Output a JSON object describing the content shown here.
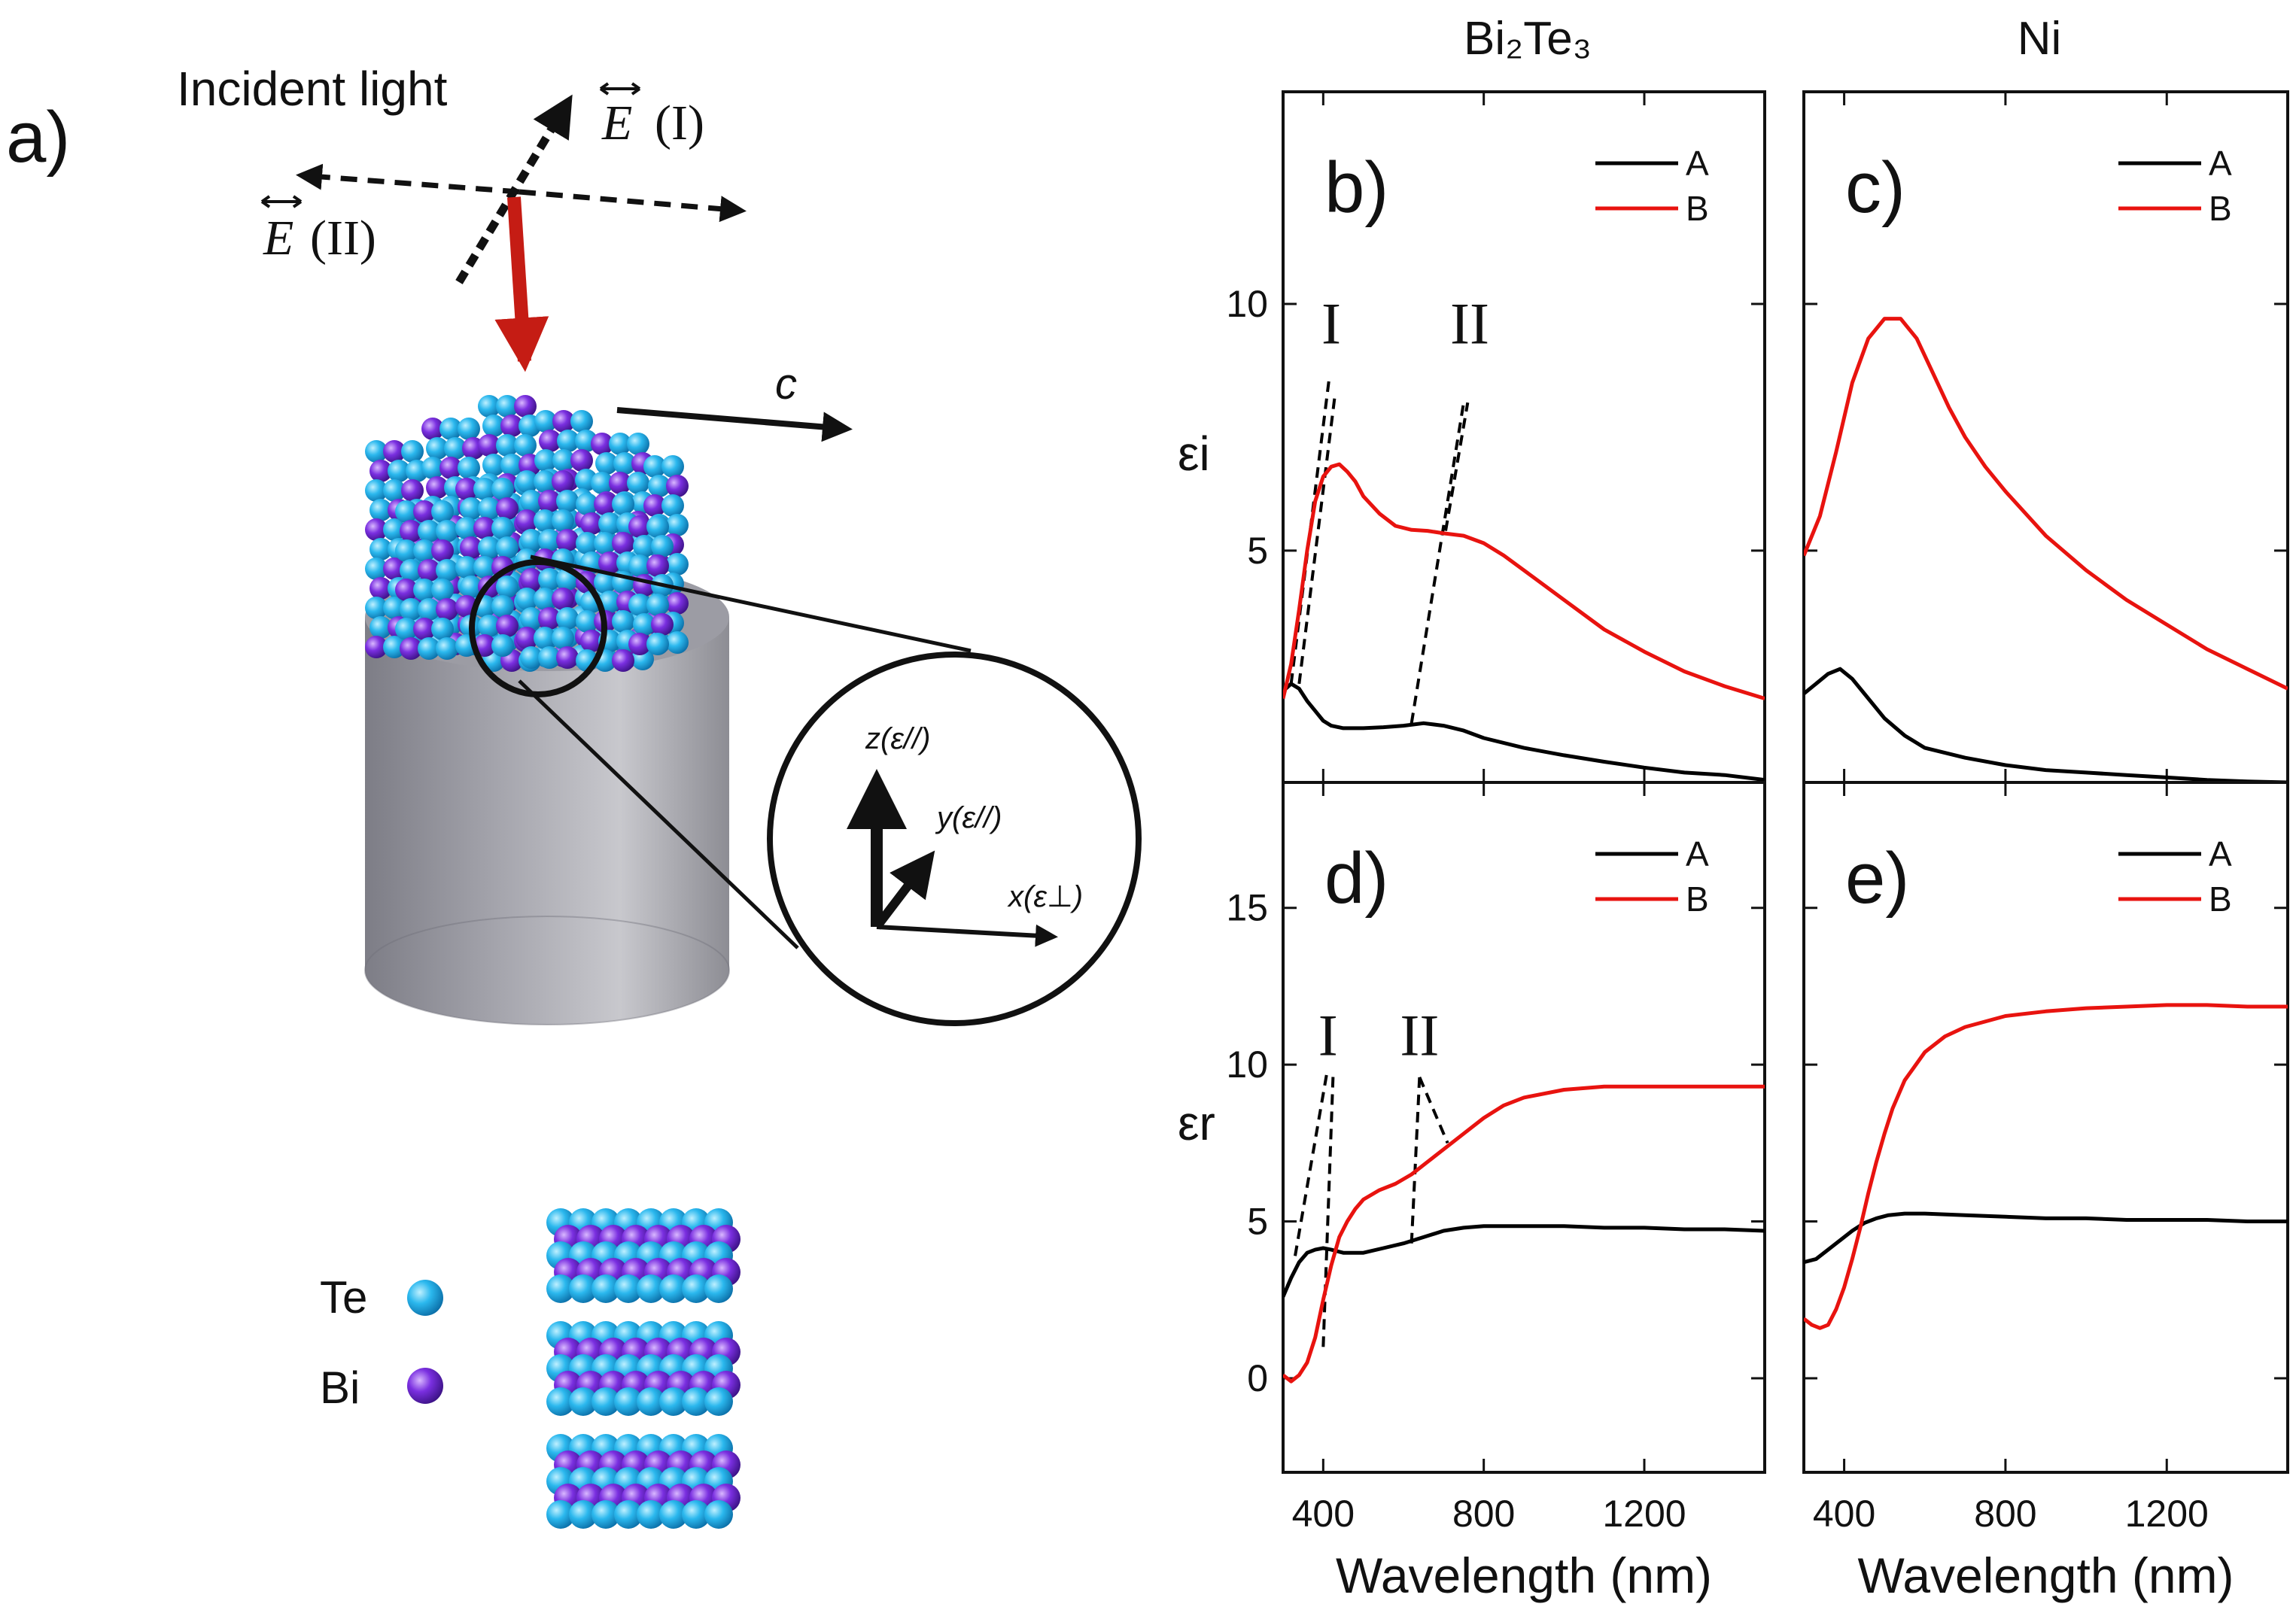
{
  "figure": {
    "panel_a": {
      "label": "a)",
      "incident_light": "Incident light",
      "e_field_1": "E",
      "e_field_1_tag": "(I)",
      "e_field_2": "E",
      "e_field_2_tag": "(II)",
      "axis_c": "c",
      "axis_z": "z(ε//)",
      "axis_y": "y(ε//)",
      "axis_x": "x(ε⊥)",
      "legend": [
        {
          "name": "Te",
          "color": "#2bb8ee"
        },
        {
          "name": "Bi",
          "color": "#7a2fe0"
        }
      ]
    },
    "column_titles": {
      "left": "Bi₂Te₃",
      "right": "Ni"
    },
    "ylabel_top": "εi",
    "ylabel_bottom": "εr",
    "colors": {
      "A": "#000000",
      "B": "#e8130f",
      "annotation": "#000000"
    }
  },
  "chart_data": [
    {
      "id": "b",
      "type": "line",
      "panel_label": "b)",
      "title": "Bi₂Te₃",
      "xlabel": "",
      "ylabel": "εi",
      "xlim": [
        300,
        1500
      ],
      "ylim": [
        0.3,
        14.3
      ],
      "xticks": [
        400,
        800,
        1200
      ],
      "yticks": [
        5,
        10
      ],
      "legend": [
        "A",
        "B"
      ],
      "series": [
        {
          "name": "A",
          "color": "#000000",
          "x": [
            300,
            320,
            340,
            360,
            380,
            400,
            420,
            450,
            500,
            550,
            600,
            650,
            700,
            750,
            800,
            900,
            1000,
            1100,
            1200,
            1300,
            1400,
            1500
          ],
          "y": [
            2.15,
            2.3,
            2.2,
            1.95,
            1.75,
            1.55,
            1.45,
            1.4,
            1.4,
            1.42,
            1.45,
            1.5,
            1.45,
            1.35,
            1.2,
            1.0,
            0.85,
            0.72,
            0.6,
            0.5,
            0.45,
            0.35
          ]
        },
        {
          "name": "B",
          "color": "#e8130f",
          "x": [
            300,
            320,
            340,
            360,
            380,
            400,
            420,
            440,
            460,
            480,
            500,
            540,
            580,
            620,
            660,
            700,
            750,
            800,
            850,
            900,
            1000,
            1100,
            1200,
            1300,
            1400,
            1500
          ],
          "y": [
            2.0,
            2.7,
            3.8,
            5.0,
            6.0,
            6.5,
            6.7,
            6.75,
            6.6,
            6.4,
            6.1,
            5.75,
            5.5,
            5.42,
            5.4,
            5.35,
            5.3,
            5.15,
            4.9,
            4.6,
            4.0,
            3.4,
            2.95,
            2.55,
            2.25,
            2.0
          ]
        }
      ],
      "annotations": [
        {
          "text": "I",
          "x": 420,
          "y": 9.2
        },
        {
          "text": "II",
          "x": 765,
          "y": 9.2
        }
      ],
      "guide_lines": [
        [
          [
            320,
            2.3
          ],
          [
            415,
            8.5
          ]
        ],
        [
          [
            340,
            2.3
          ],
          [
            430,
            8.2
          ]
        ],
        [
          [
            620,
            1.5
          ],
          [
            750,
            8.0
          ]
        ],
        [
          [
            705,
            5.4
          ],
          [
            760,
            8.0
          ]
        ]
      ]
    },
    {
      "id": "c",
      "type": "line",
      "panel_label": "c)",
      "title": "Ni",
      "xlabel": "",
      "ylabel": "",
      "xlim": [
        300,
        1500
      ],
      "ylim": [
        0.3,
        14.3
      ],
      "xticks": [
        400,
        800,
        1200
      ],
      "yticks": [
        5,
        10
      ],
      "legend": [
        "A",
        "B"
      ],
      "series": [
        {
          "name": "A",
          "color": "#000000",
          "x": [
            300,
            330,
            360,
            390,
            420,
            450,
            500,
            550,
            600,
            700,
            800,
            900,
            1000,
            1100,
            1200,
            1300,
            1400,
            1500
          ],
          "y": [
            2.1,
            2.3,
            2.5,
            2.6,
            2.4,
            2.1,
            1.6,
            1.25,
            1.0,
            0.8,
            0.65,
            0.55,
            0.5,
            0.45,
            0.4,
            0.35,
            0.32,
            0.3
          ]
        },
        {
          "name": "B",
          "color": "#e8130f",
          "x": [
            300,
            340,
            380,
            420,
            460,
            500,
            540,
            580,
            620,
            660,
            700,
            750,
            800,
            900,
            1000,
            1100,
            1200,
            1300,
            1400,
            1500
          ],
          "y": [
            4.9,
            5.7,
            7.0,
            8.4,
            9.3,
            9.7,
            9.7,
            9.3,
            8.6,
            7.9,
            7.3,
            6.7,
            6.2,
            5.3,
            4.6,
            4.0,
            3.5,
            3.0,
            2.6,
            2.2
          ]
        }
      ]
    },
    {
      "id": "d",
      "type": "line",
      "panel_label": "d)",
      "title": "",
      "xlabel": "Wavelength (nm)",
      "ylabel": "εr",
      "xlim": [
        300,
        1500
      ],
      "ylim": [
        -3,
        19
      ],
      "xticks": [
        400,
        800,
        1200
      ],
      "yticks": [
        0,
        5,
        10,
        15
      ],
      "legend": [
        "A",
        "B"
      ],
      "series": [
        {
          "name": "A",
          "color": "#000000",
          "x": [
            300,
            320,
            340,
            360,
            380,
            400,
            420,
            450,
            500,
            550,
            600,
            650,
            700,
            750,
            800,
            900,
            1000,
            1100,
            1200,
            1300,
            1400,
            1500
          ],
          "y": [
            2.6,
            3.2,
            3.7,
            4.0,
            4.1,
            4.15,
            4.1,
            4.0,
            4.0,
            4.15,
            4.3,
            4.5,
            4.7,
            4.8,
            4.85,
            4.85,
            4.85,
            4.8,
            4.8,
            4.75,
            4.75,
            4.7
          ]
        },
        {
          "name": "B",
          "color": "#e8130f",
          "x": [
            300,
            320,
            340,
            360,
            380,
            400,
            420,
            440,
            460,
            480,
            500,
            540,
            580,
            620,
            660,
            700,
            750,
            800,
            850,
            900,
            1000,
            1100,
            1200,
            1300,
            1400,
            1500
          ],
          "y": [
            0.1,
            -0.1,
            0.1,
            0.5,
            1.3,
            2.5,
            3.6,
            4.5,
            5.0,
            5.4,
            5.7,
            6.0,
            6.2,
            6.5,
            6.9,
            7.3,
            7.8,
            8.3,
            8.7,
            8.95,
            9.2,
            9.3,
            9.3,
            9.3,
            9.3,
            9.3
          ]
        }
      ],
      "annotations": [
        {
          "text": "I",
          "x": 412,
          "y": 10.3
        },
        {
          "text": "II",
          "x": 640,
          "y": 10.3
        }
      ],
      "guide_lines": [
        [
          [
            330,
            3.9
          ],
          [
            410,
            9.8
          ]
        ],
        [
          [
            400,
            1.0
          ],
          [
            425,
            9.8
          ]
        ],
        [
          [
            620,
            4.3
          ],
          [
            640,
            9.6
          ]
        ],
        [
          [
            640,
            9.6
          ],
          [
            710,
            7.5
          ]
        ]
      ]
    },
    {
      "id": "e",
      "type": "line",
      "panel_label": "e)",
      "title": "",
      "xlabel": "Wavelength (nm)",
      "ylabel": "",
      "xlim": [
        300,
        1500
      ],
      "ylim": [
        -3,
        19
      ],
      "xticks": [
        400,
        800,
        1200
      ],
      "yticks": [
        0,
        5,
        10,
        15
      ],
      "legend": [
        "A",
        "B"
      ],
      "series": [
        {
          "name": "A",
          "color": "#000000",
          "x": [
            300,
            330,
            360,
            390,
            420,
            450,
            480,
            510,
            550,
            600,
            700,
            800,
            900,
            1000,
            1100,
            1200,
            1300,
            1400,
            1500
          ],
          "y": [
            3.7,
            3.8,
            4.1,
            4.4,
            4.7,
            4.95,
            5.1,
            5.2,
            5.25,
            5.25,
            5.2,
            5.15,
            5.1,
            5.1,
            5.05,
            5.05,
            5.05,
            5.0,
            5.0
          ]
        },
        {
          "name": "B",
          "color": "#e8130f",
          "x": [
            300,
            320,
            340,
            360,
            380,
            400,
            420,
            440,
            460,
            480,
            500,
            520,
            550,
            600,
            650,
            700,
            800,
            900,
            1000,
            1100,
            1200,
            1300,
            1400,
            1500
          ],
          "y": [
            1.9,
            1.7,
            1.6,
            1.7,
            2.2,
            2.9,
            3.8,
            4.8,
            5.9,
            6.9,
            7.8,
            8.6,
            9.5,
            10.4,
            10.9,
            11.2,
            11.55,
            11.7,
            11.8,
            11.85,
            11.9,
            11.9,
            11.85,
            11.85
          ]
        }
      ]
    }
  ]
}
